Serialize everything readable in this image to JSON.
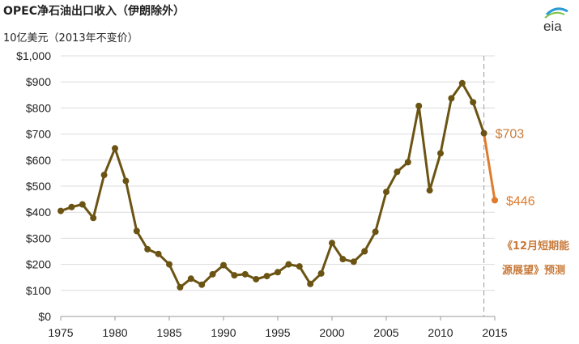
{
  "header": {
    "title": "OPEC净石油出口收入（伊朗除外）",
    "subtitle": "10亿美元（2013年不变价）"
  },
  "logo": {
    "text": "eia",
    "icon": "eia-logo-icon"
  },
  "forecast": {
    "note_line1": "《12月短期能",
    "note_line2": "源展望》预测"
  },
  "chart_data": {
    "type": "line",
    "title": "OPEC净石油出口收入（伊朗除外）",
    "ylabel": "10亿美元（2013年不变价）",
    "xlim": [
      1975,
      2015
    ],
    "ylim": [
      0,
      1000
    ],
    "x_ticks": [
      "1975",
      "1980",
      "1985",
      "1990",
      "1995",
      "2000",
      "2005",
      "2010",
      "2015"
    ],
    "y_ticks": [
      "$0",
      "$100",
      "$200",
      "$300",
      "$400",
      "$500",
      "$600",
      "$700",
      "$800",
      "$900",
      "$1,000"
    ],
    "grid": true,
    "series": [
      {
        "color": "#6b5413",
        "points": [
          [
            1975,
            405
          ],
          [
            1976,
            420
          ],
          [
            1977,
            430
          ],
          [
            1978,
            378
          ],
          [
            1979,
            543
          ],
          [
            1980,
            645
          ],
          [
            1981,
            520
          ],
          [
            1982,
            328
          ],
          [
            1983,
            258
          ],
          [
            1984,
            240
          ],
          [
            1985,
            200
          ],
          [
            1986,
            112
          ],
          [
            1987,
            145
          ],
          [
            1988,
            122
          ],
          [
            1989,
            162
          ],
          [
            1990,
            197
          ],
          [
            1991,
            158
          ],
          [
            1992,
            162
          ],
          [
            1993,
            143
          ],
          [
            1994,
            155
          ],
          [
            1995,
            170
          ],
          [
            1996,
            200
          ],
          [
            1997,
            192
          ],
          [
            1998,
            125
          ],
          [
            1999,
            165
          ],
          [
            2000,
            282
          ],
          [
            2001,
            220
          ],
          [
            2002,
            210
          ],
          [
            2003,
            250
          ],
          [
            2004,
            325
          ],
          [
            2005,
            478
          ],
          [
            2006,
            555
          ],
          [
            2007,
            592
          ],
          [
            2008,
            808
          ],
          [
            2009,
            484
          ],
          [
            2010,
            626
          ],
          [
            2011,
            837
          ],
          [
            2012,
            895
          ],
          [
            2013,
            822
          ],
          [
            2014,
            703
          ]
        ]
      },
      {
        "color": "#e07b2c",
        "points": [
          [
            2014,
            703
          ],
          [
            2015,
            446
          ]
        ]
      }
    ],
    "annotations": [
      {
        "x": 2014,
        "y": 703,
        "label": "$703",
        "color": "#c87a3a"
      },
      {
        "x": 2015,
        "y": 446,
        "label": "$446",
        "color": "#e07b2c"
      }
    ],
    "forecast_divider_x": 2014.0
  }
}
